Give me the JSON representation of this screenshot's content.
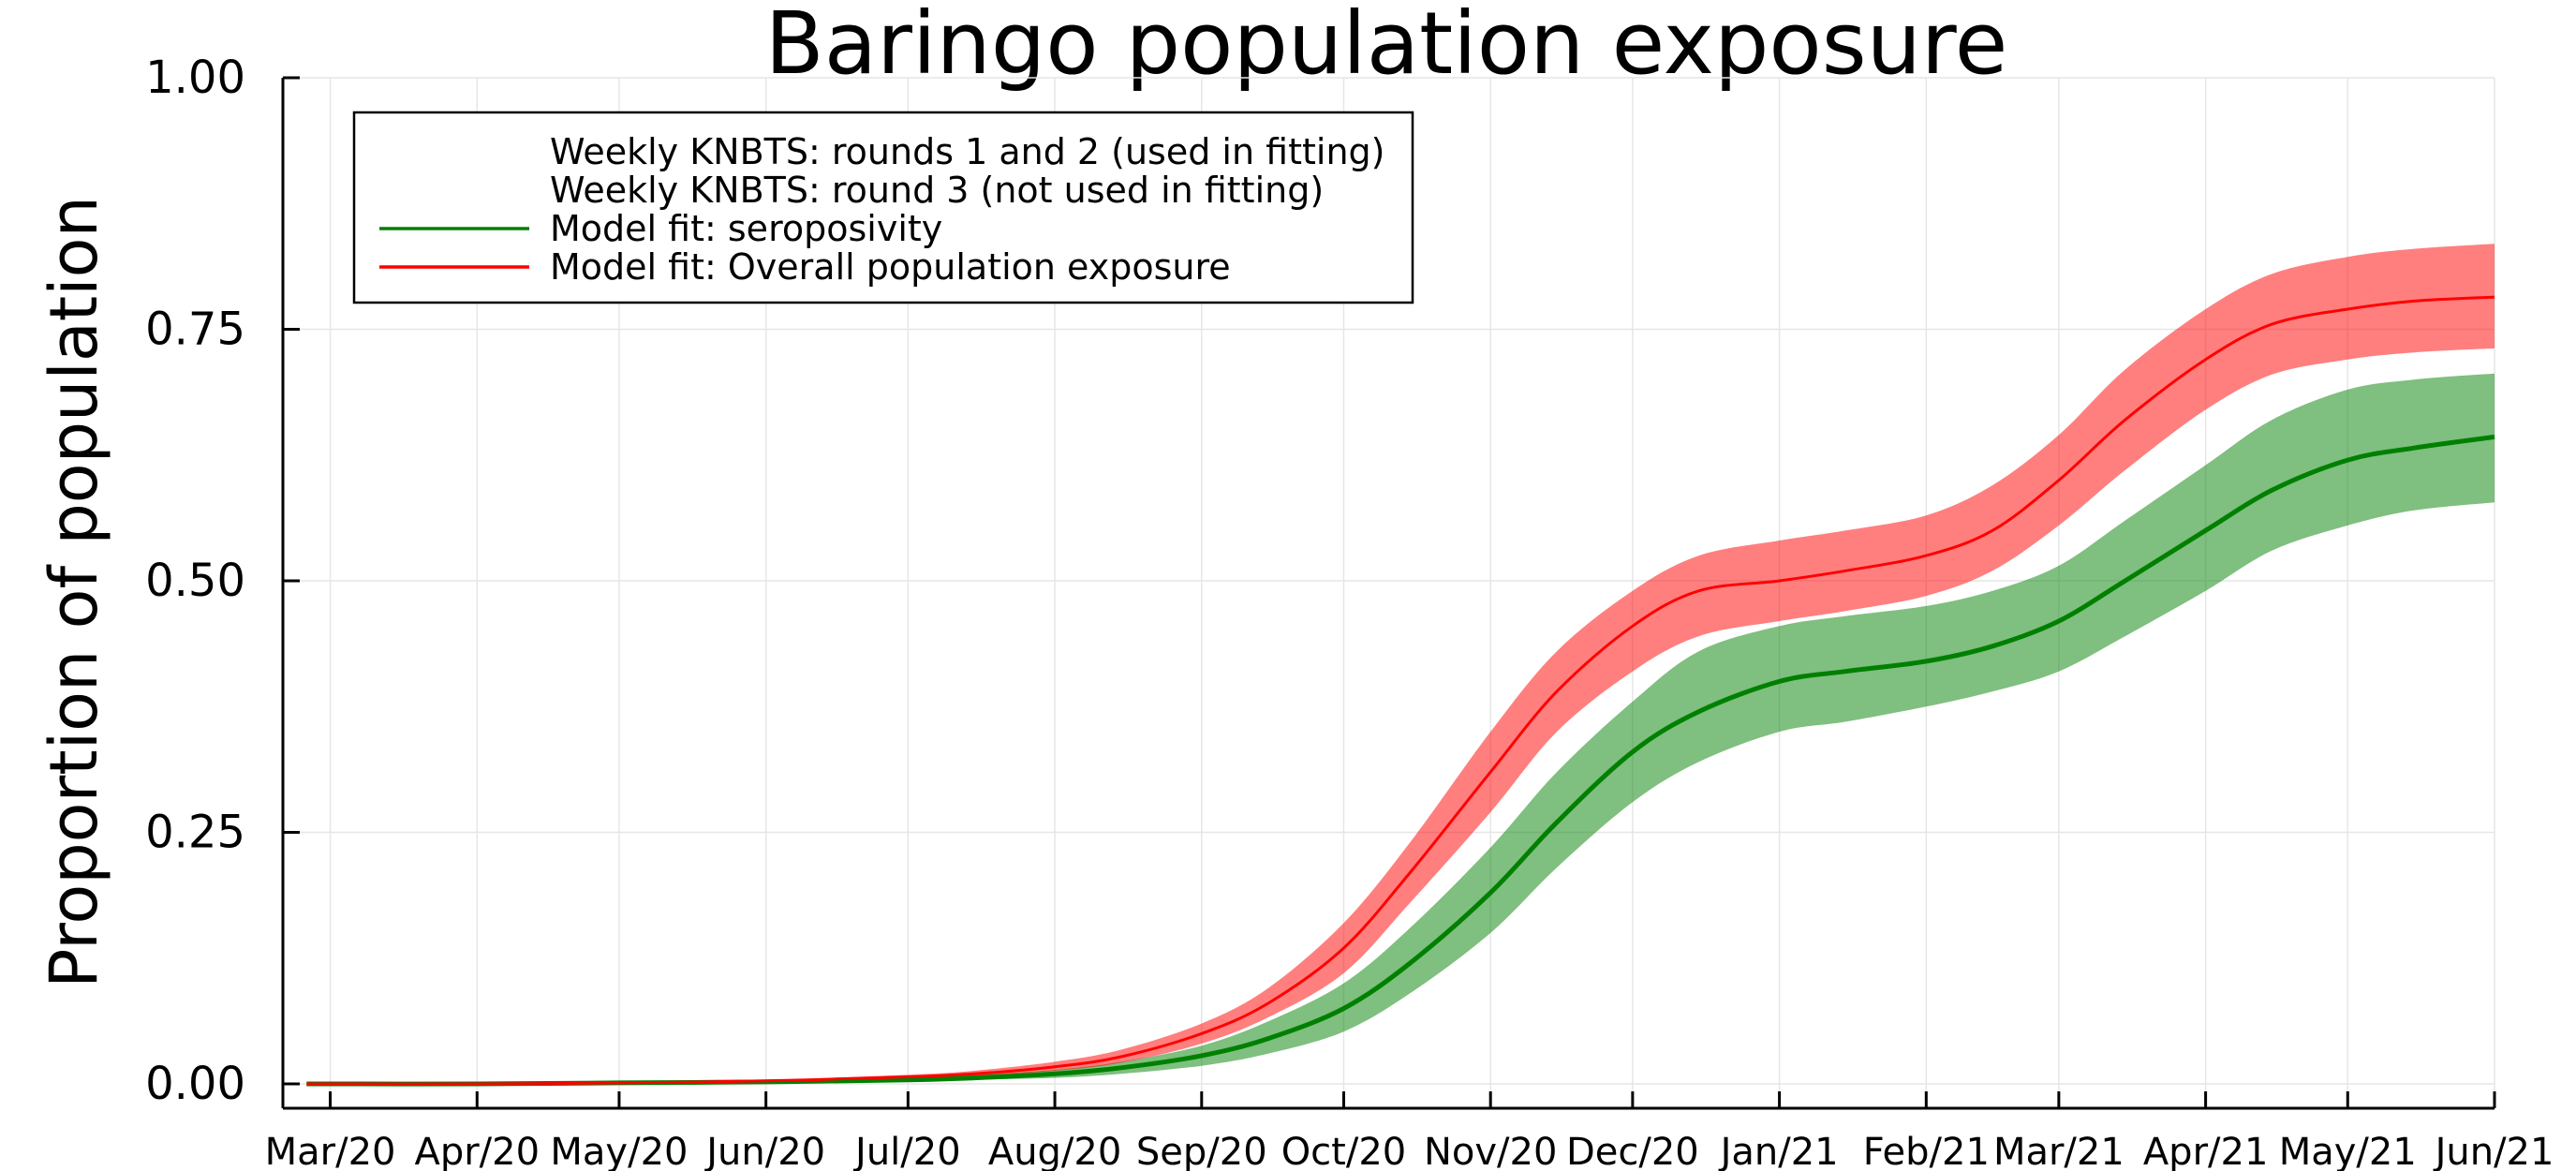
{
  "chart_data": {
    "type": "line",
    "title": "Baringo population exposure",
    "xlabel": "",
    "ylabel": "Proportion of population",
    "ylim": [
      0,
      1
    ],
    "yticks": [
      "0.00",
      "0.25",
      "0.50",
      "0.75",
      "1.00"
    ],
    "ytick_values": [
      0,
      0.25,
      0.5,
      0.75,
      1.0
    ],
    "xtick_labels": [
      "Mar/20",
      "Apr/20",
      "May/20",
      "Jun/20",
      "Jul/20",
      "Aug/20",
      "Sep/20",
      "Oct/20",
      "Nov/20",
      "Dec/20",
      "Jan/21",
      "Feb/21",
      "Mar/21",
      "Apr/21",
      "May/21",
      "Jun/21"
    ],
    "xtick_dates": [
      "2020-03-01",
      "2020-04-01",
      "2020-05-01",
      "2020-06-01",
      "2020-07-01",
      "2020-08-01",
      "2020-09-01",
      "2020-10-01",
      "2020-11-01",
      "2020-12-01",
      "2021-01-01",
      "2021-02-01",
      "2021-03-01",
      "2021-04-01",
      "2021-05-01",
      "2021-06-01"
    ],
    "xlim": [
      "2020-02-20",
      "2021-06-01"
    ],
    "grid": true,
    "legend_position": "top-left",
    "legend": [
      {
        "label": "Weekly KNBTS: rounds 1 and 2 (used in fitting)",
        "color": null
      },
      {
        "label": "Weekly KNBTS: round 3 (not used in fitting)",
        "color": null
      },
      {
        "label": "Model fit: seroposivity",
        "color": "#008000"
      },
      {
        "label": "Model fit: Overall population exposure",
        "color": "#ff0000"
      }
    ],
    "x": [
      "2020-02-25",
      "2020-04-01",
      "2020-05-01",
      "2020-06-01",
      "2020-07-01",
      "2020-07-15",
      "2020-08-01",
      "2020-08-15",
      "2020-09-01",
      "2020-09-15",
      "2020-10-01",
      "2020-10-15",
      "2020-11-01",
      "2020-11-15",
      "2020-12-01",
      "2020-12-15",
      "2021-01-01",
      "2021-01-15",
      "2021-02-01",
      "2021-02-15",
      "2021-03-01",
      "2021-03-15",
      "2021-04-01",
      "2021-04-15",
      "2021-05-01",
      "2021-05-15",
      "2021-06-01"
    ],
    "series": [
      {
        "name": "Model fit: seroposivity",
        "color": "#008000",
        "values": [
          0.0,
          0.0,
          0.001,
          0.002,
          0.004,
          0.006,
          0.01,
          0.016,
          0.028,
          0.045,
          0.075,
          0.12,
          0.19,
          0.26,
          0.33,
          0.37,
          0.4,
          0.41,
          0.42,
          0.435,
          0.46,
          0.5,
          0.55,
          0.59,
          0.62,
          0.632,
          0.643
        ],
        "lower": [
          0.0,
          0.0,
          0.0005,
          0.001,
          0.002,
          0.004,
          0.006,
          0.01,
          0.018,
          0.03,
          0.052,
          0.09,
          0.15,
          0.215,
          0.28,
          0.32,
          0.35,
          0.36,
          0.375,
          0.39,
          0.41,
          0.445,
          0.49,
          0.53,
          0.555,
          0.57,
          0.578
        ],
        "upper": [
          0.0,
          0.001,
          0.002,
          0.003,
          0.006,
          0.009,
          0.014,
          0.022,
          0.038,
          0.062,
          0.1,
          0.155,
          0.235,
          0.31,
          0.38,
          0.43,
          0.455,
          0.465,
          0.475,
          0.49,
          0.515,
          0.56,
          0.615,
          0.66,
          0.69,
          0.7,
          0.706
        ]
      },
      {
        "name": "Model fit: Overall population exposure",
        "color": "#ff0000",
        "values": [
          0.0,
          0.0,
          0.001,
          0.003,
          0.007,
          0.01,
          0.017,
          0.027,
          0.05,
          0.08,
          0.135,
          0.21,
          0.31,
          0.39,
          0.455,
          0.49,
          0.5,
          0.51,
          0.525,
          0.55,
          0.6,
          0.66,
          0.72,
          0.755,
          0.77,
          0.778,
          0.782
        ],
        "lower": [
          0.0,
          0.0,
          0.0005,
          0.002,
          0.005,
          0.008,
          0.013,
          0.021,
          0.04,
          0.066,
          0.11,
          0.18,
          0.27,
          0.35,
          0.41,
          0.445,
          0.46,
          0.47,
          0.485,
          0.51,
          0.555,
          0.61,
          0.67,
          0.705,
          0.72,
          0.727,
          0.731
        ],
        "upper": [
          0.0,
          0.001,
          0.002,
          0.004,
          0.009,
          0.013,
          0.022,
          0.034,
          0.06,
          0.095,
          0.16,
          0.24,
          0.35,
          0.43,
          0.49,
          0.525,
          0.54,
          0.55,
          0.565,
          0.595,
          0.645,
          0.71,
          0.77,
          0.805,
          0.822,
          0.83,
          0.835
        ]
      }
    ]
  }
}
